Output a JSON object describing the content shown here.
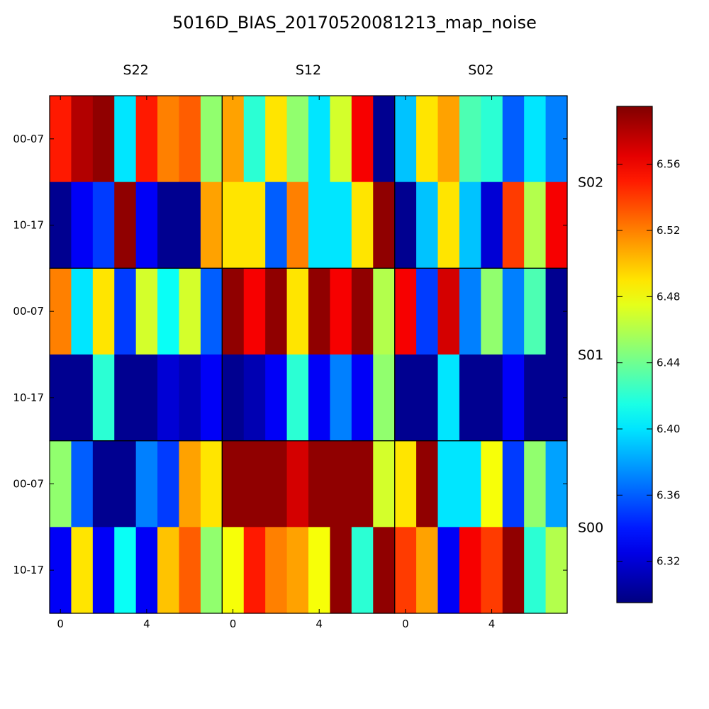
{
  "chart_data": {
    "type": "heatmap",
    "title": "5016D_BIAS_20170520081213_map_noise",
    "column_groups": [
      "S22",
      "S12",
      "S02"
    ],
    "row_groups": [
      "S02",
      "S01",
      "S00"
    ],
    "row_tick_labels": [
      "00-07",
      "10-17"
    ],
    "x_tick_labels": [
      "0",
      "4"
    ],
    "x_tick_values": [
      0,
      4
    ],
    "colorbar": {
      "ticks": [
        6.32,
        6.36,
        6.4,
        6.44,
        6.48,
        6.52,
        6.56
      ],
      "tick_labels": [
        "6.32",
        "6.36",
        "6.40",
        "6.44",
        "6.48",
        "6.52",
        "6.56"
      ],
      "range": [
        6.295,
        6.595
      ]
    },
    "grid": false,
    "cells": [
      [
        [
          6.55,
          6.58,
          6.59,
          6.4,
          6.55,
          6.52,
          6.53,
          6.45
        ],
        [
          6.3,
          6.33,
          6.35,
          6.59,
          6.33,
          6.3,
          6.3,
          6.51
        ],
        [
          6.52,
          6.4,
          6.49,
          6.35,
          6.47,
          6.41,
          6.47,
          6.36
        ],
        [
          6.3,
          6.3,
          6.42,
          6.3,
          6.3,
          6.32,
          6.31,
          6.33
        ],
        [
          6.45,
          6.36,
          6.3,
          6.3,
          6.37,
          6.35,
          6.51,
          6.49
        ],
        [
          6.33,
          6.49,
          6.33,
          6.41,
          6.33,
          6.5,
          6.53,
          6.45
        ]
      ],
      [
        [
          6.51,
          6.42,
          6.49,
          6.45,
          6.4,
          6.47,
          6.56,
          6.3
        ],
        [
          6.49,
          6.49,
          6.36,
          6.52,
          6.4,
          6.4,
          6.49,
          6.59
        ],
        [
          6.59,
          6.56,
          6.59,
          6.49,
          6.59,
          6.56,
          6.59,
          6.46
        ],
        [
          6.3,
          6.31,
          6.33,
          6.42,
          6.33,
          6.37,
          6.33,
          6.45
        ],
        [
          6.59,
          6.59,
          6.59,
          6.57,
          6.59,
          6.59,
          6.59,
          6.47
        ],
        [
          6.48,
          6.55,
          6.52,
          6.51,
          6.48,
          6.59,
          6.42,
          6.59
        ]
      ],
      [
        [
          6.39,
          6.49,
          6.51,
          6.43,
          6.42,
          6.36,
          6.4,
          6.37
        ],
        [
          6.3,
          6.39,
          6.49,
          6.39,
          6.32,
          6.54,
          6.46,
          6.56
        ],
        [
          6.56,
          6.35,
          6.57,
          6.37,
          6.45,
          6.37,
          6.43,
          6.3
        ],
        [
          6.3,
          6.3,
          6.4,
          6.3,
          6.3,
          6.33,
          6.3,
          6.3
        ],
        [
          6.49,
          6.59,
          6.4,
          6.4,
          6.48,
          6.35,
          6.45,
          6.38
        ],
        [
          6.54,
          6.51,
          6.33,
          6.56,
          6.54,
          6.59,
          6.42,
          6.46
        ]
      ]
    ]
  }
}
